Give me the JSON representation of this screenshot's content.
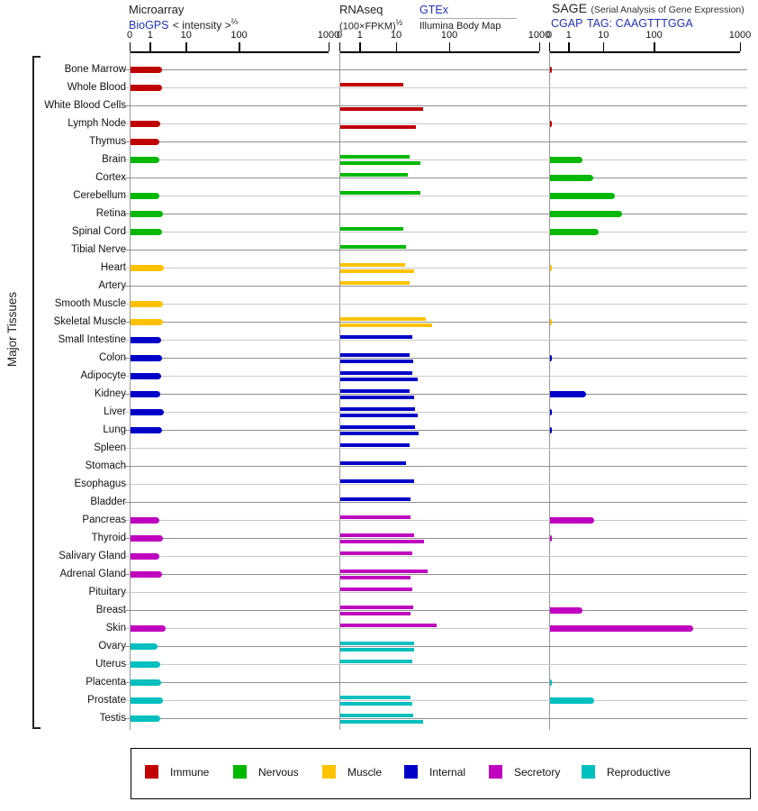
{
  "side_label": "Major Tissues",
  "header": {
    "microarray": {
      "title": "Microarray",
      "link": "BioGPS",
      "scale_label": "< intensity >",
      "scale_exp": "⅔"
    },
    "rnaseq": {
      "title": "RNAseq",
      "scale_label": "(100×FPKM)",
      "scale_exp": "½",
      "source_top": "GTEx",
      "source_bottom": "Illumina Body Map"
    },
    "sage": {
      "title": "SAGE",
      "subtitle": "(Serial Analysis of Gene Expression)",
      "link": "CGAP",
      "tag_label": "TAG: CAAGTTTGGA"
    }
  },
  "axis": {
    "ticks": [
      "0",
      "1",
      "10",
      "100",
      "1000"
    ]
  },
  "legend": [
    {
      "label": "Immune",
      "key": "immune",
      "color": "#c00000"
    },
    {
      "label": "Nervous",
      "key": "nervous",
      "color": "#00b800"
    },
    {
      "label": "Muscle",
      "key": "muscle",
      "color": "#ffc200"
    },
    {
      "label": "Internal",
      "key": "internal",
      "color": "#0000c8"
    },
    {
      "label": "Secretory",
      "key": "secretory",
      "color": "#bf00bf"
    },
    {
      "label": "Reproductive",
      "key": "reproductive",
      "color": "#00bfbf"
    }
  ],
  "chart_data": {
    "type": "bar",
    "orientation": "horizontal",
    "scale_note": "shared pseudo-log axis, ticks at 0, 1, 10, 100, 1000",
    "panels": [
      {
        "id": "microarray",
        "title": "Microarray (BioGPS, intensity^2/3)",
        "series": [
          "microarray"
        ]
      },
      {
        "id": "rnaseq",
        "title": "RNAseq (100×FPKM)^1/2",
        "series": [
          "gtex",
          "illumina"
        ]
      },
      {
        "id": "sage",
        "title": "SAGE CGAP TAG: CAAGTTTGGA",
        "series": [
          "sage"
        ]
      }
    ],
    "category_colors": {
      "immune": "#c00000",
      "nervous": "#00b800",
      "muscle": "#ffc200",
      "internal": "#0000c8",
      "secretory": "#bf00bf",
      "reproductive": "#00bfbf"
    },
    "tissues": [
      {
        "name": "Bone Marrow",
        "category": "immune",
        "microarray": 2.0,
        "gtex": null,
        "illumina": null,
        "sage": 0.1
      },
      {
        "name": "Whole Blood",
        "category": "immune",
        "microarray": 2.0,
        "gtex": 13,
        "illumina": null,
        "sage": null
      },
      {
        "name": "White Blood Cells",
        "category": "immune",
        "microarray": null,
        "gtex": null,
        "illumina": 31,
        "sage": null
      },
      {
        "name": "Lymph Node",
        "category": "immune",
        "microarray": 1.8,
        "gtex": null,
        "illumina": 23,
        "sage": 0.1
      },
      {
        "name": "Thymus",
        "category": "immune",
        "microarray": 1.7,
        "gtex": null,
        "illumina": null,
        "sage": null
      },
      {
        "name": "Brain",
        "category": "nervous",
        "microarray": 1.7,
        "gtex": 17,
        "illumina": 27,
        "sage": 2.4
      },
      {
        "name": "Cortex",
        "category": "nervous",
        "microarray": null,
        "gtex": 16,
        "illumina": null,
        "sage": 4.7
      },
      {
        "name": "Cerebellum",
        "category": "nervous",
        "microarray": 1.7,
        "gtex": 27,
        "illumina": null,
        "sage": 16
      },
      {
        "name": "Retina",
        "category": "nervous",
        "microarray": 2.1,
        "gtex": null,
        "illumina": null,
        "sage": 22
      },
      {
        "name": "Spinal Cord",
        "category": "nervous",
        "microarray": 2.0,
        "gtex": 13,
        "illumina": null,
        "sage": 6.7
      },
      {
        "name": "Tibial Nerve",
        "category": "nervous",
        "microarray": null,
        "gtex": 15,
        "illumina": null,
        "sage": null
      },
      {
        "name": "Heart",
        "category": "muscle",
        "microarray": 2.3,
        "gtex": 14,
        "illumina": 21,
        "sage": 0.1
      },
      {
        "name": "Artery",
        "category": "muscle",
        "microarray": null,
        "gtex": 17,
        "illumina": null,
        "sage": null
      },
      {
        "name": "Smooth Muscle",
        "category": "muscle",
        "microarray": 2.1,
        "gtex": null,
        "illumina": null,
        "sage": null
      },
      {
        "name": "Skeletal Muscle",
        "category": "muscle",
        "microarray": 2.2,
        "gtex": 35,
        "illumina": 46,
        "sage": 0.1
      },
      {
        "name": "Small Intestine",
        "category": "internal",
        "microarray": 1.9,
        "gtex": 19,
        "illumina": null,
        "sage": null
      },
      {
        "name": "Colon",
        "category": "internal",
        "microarray": 2.0,
        "gtex": 17,
        "illumina": 20,
        "sage": 0.1
      },
      {
        "name": "Adipocyte",
        "category": "internal",
        "microarray": 1.9,
        "gtex": 19,
        "illumina": 24,
        "sage": null
      },
      {
        "name": "Kidney",
        "category": "internal",
        "microarray": 1.8,
        "gtex": 17,
        "illumina": 21,
        "sage": 2.9
      },
      {
        "name": "Liver",
        "category": "internal",
        "microarray": 2.3,
        "gtex": 22,
        "illumina": 24,
        "sage": 0.1
      },
      {
        "name": "Lung",
        "category": "internal",
        "microarray": 2.0,
        "gtex": 22,
        "illumina": 25,
        "sage": 0.1
      },
      {
        "name": "Spleen",
        "category": "internal",
        "microarray": null,
        "gtex": 17,
        "illumina": null,
        "sage": null
      },
      {
        "name": "Stomach",
        "category": "internal",
        "microarray": null,
        "gtex": 15,
        "illumina": null,
        "sage": null
      },
      {
        "name": "Esophagus",
        "category": "internal",
        "microarray": null,
        "gtex": 21,
        "illumina": null,
        "sage": null
      },
      {
        "name": "Bladder",
        "category": "internal",
        "microarray": null,
        "gtex": 18,
        "illumina": null,
        "sage": null
      },
      {
        "name": "Pancreas",
        "category": "secretory",
        "microarray": 1.7,
        "gtex": 18,
        "illumina": null,
        "sage": 5.0
      },
      {
        "name": "Thyroid",
        "category": "secretory",
        "microarray": 2.2,
        "gtex": 21,
        "illumina": 32,
        "sage": 0.1
      },
      {
        "name": "Salivary Gland",
        "category": "secretory",
        "microarray": 1.7,
        "gtex": 19,
        "illumina": null,
        "sage": null
      },
      {
        "name": "Adrenal Gland",
        "category": "secretory",
        "microarray": 2.0,
        "gtex": 37,
        "illumina": 18,
        "sage": null
      },
      {
        "name": "Pituitary",
        "category": "secretory",
        "microarray": null,
        "gtex": 19,
        "illumina": null,
        "sage": null
      },
      {
        "name": "Breast",
        "category": "secretory",
        "microarray": null,
        "gtex": 20,
        "illumina": 18,
        "sage": 2.4
      },
      {
        "name": "Skin",
        "category": "secretory",
        "microarray": 2.5,
        "gtex": 56,
        "illumina": null,
        "sage": 277
      },
      {
        "name": "Ovary",
        "category": "reproductive",
        "microarray": 1.5,
        "gtex": 21,
        "illumina": 21,
        "sage": null
      },
      {
        "name": "Uterus",
        "category": "reproductive",
        "microarray": 1.8,
        "gtex": 19,
        "illumina": null,
        "sage": null
      },
      {
        "name": "Placenta",
        "category": "reproductive",
        "microarray": 1.9,
        "gtex": null,
        "illumina": null,
        "sage": 0.1
      },
      {
        "name": "Prostate",
        "category": "reproductive",
        "microarray": 2.1,
        "gtex": 18,
        "illumina": 19,
        "sage": 5.0
      },
      {
        "name": "Testis",
        "category": "reproductive",
        "microarray": 1.8,
        "gtex": 20,
        "illumina": 31,
        "sage": null
      }
    ]
  }
}
